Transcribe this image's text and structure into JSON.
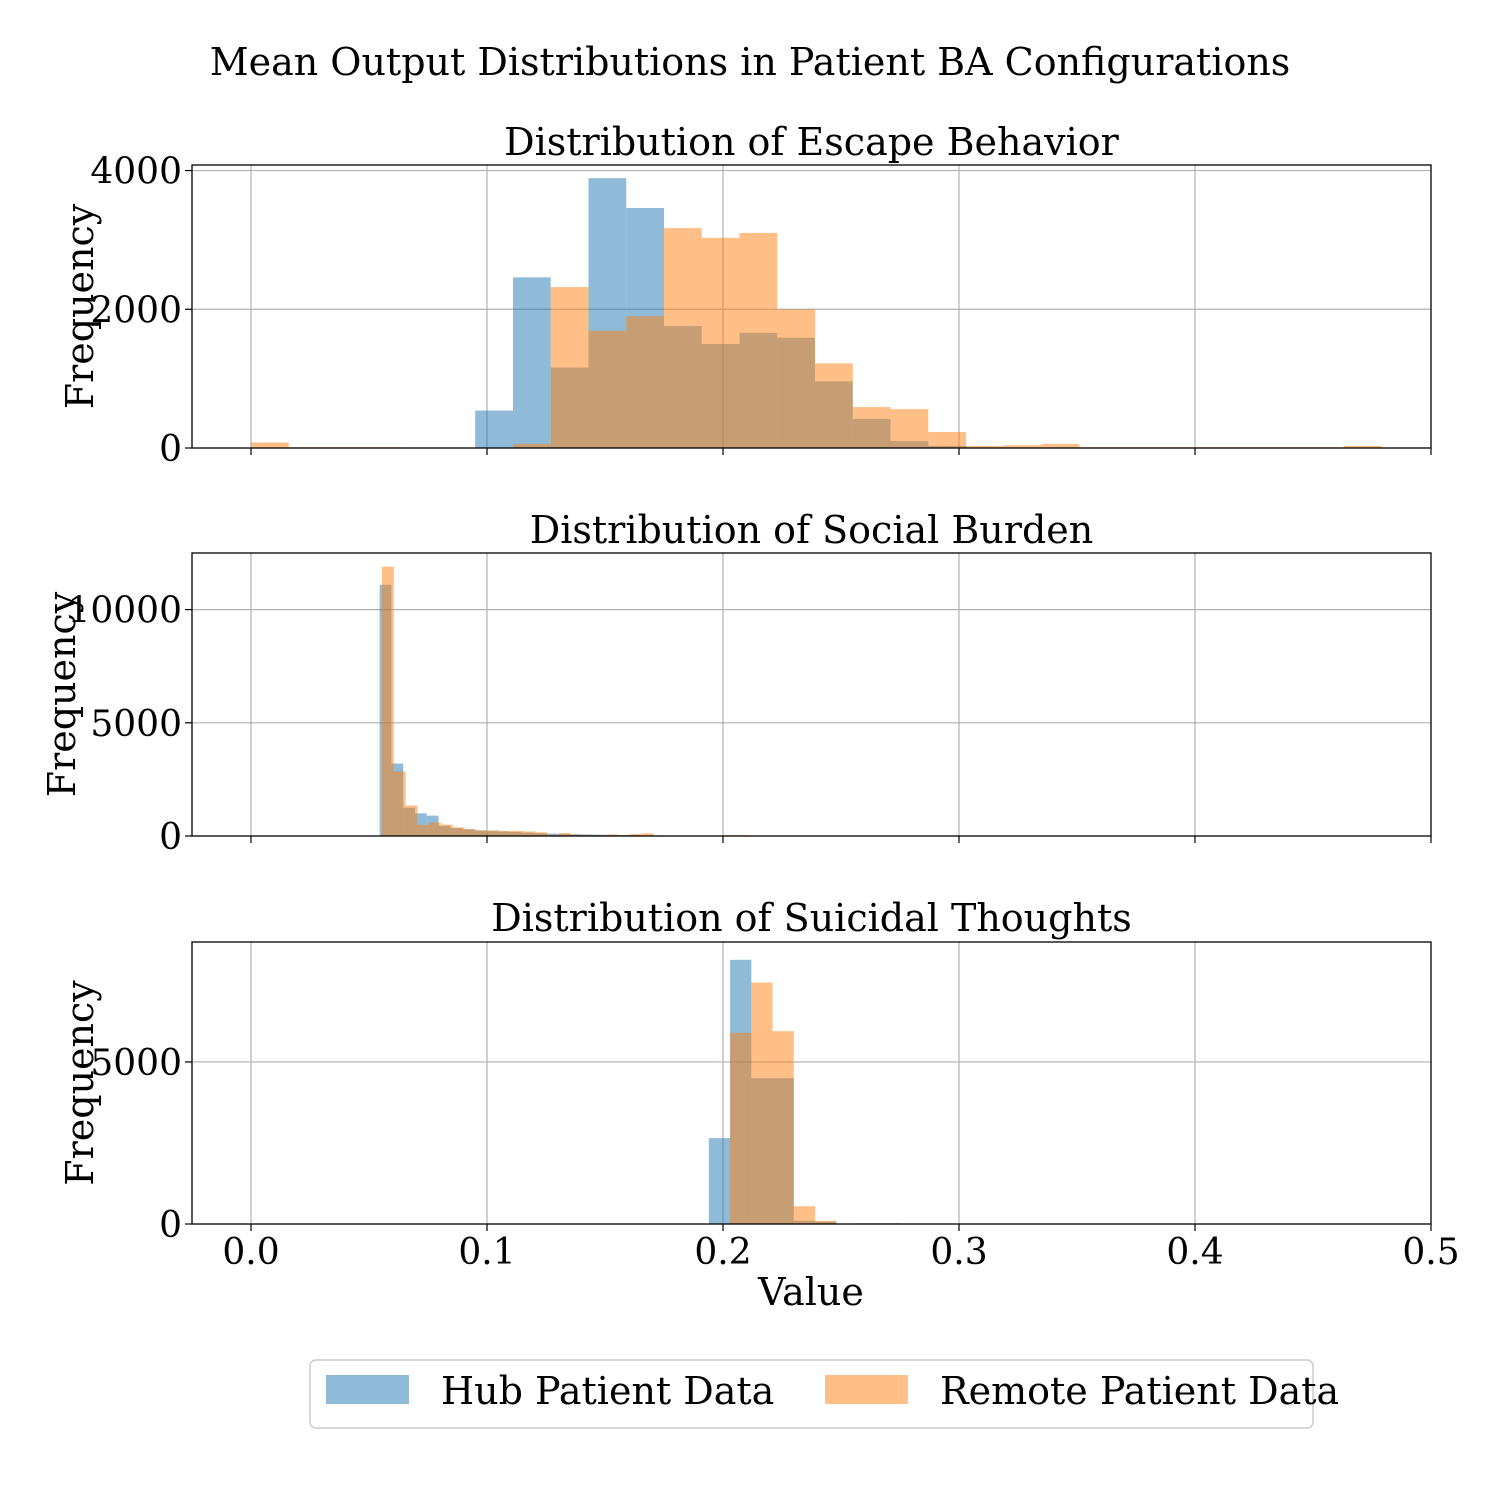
{
  "chart_data": {
    "type": "histogram",
    "title": "Mean Output Distributions in Patient BA Configurations",
    "xlabel": "Value",
    "xlim": [
      -0.025,
      0.5
    ],
    "x_ticks": [
      "0.0",
      "0.1",
      "0.2",
      "0.3",
      "0.4",
      "0.5"
    ],
    "grid": true,
    "legend_position": "bottom-center",
    "series_styles": [
      {
        "name": "Hub Patient Data",
        "color": "#1f77b4",
        "opacity": 0.5
      },
      {
        "name": "Remote Patient Data",
        "color": "#ff7f0e",
        "opacity": 0.5
      }
    ],
    "panels": [
      {
        "title": "Distribution of Escape Behavior",
        "ylabel": "Frequency",
        "ylim": [
          0,
          4080
        ],
        "y_ticks": [
          0,
          2000,
          4000
        ],
        "series": [
          {
            "name": "Hub Patient Data",
            "bins": [
              [
                0.095,
                0.111,
                540
              ],
              [
                0.111,
                0.127,
                2460
              ],
              [
                0.127,
                0.143,
                1160
              ],
              [
                0.143,
                0.159,
                3890
              ],
              [
                0.159,
                0.175,
                3460
              ],
              [
                0.175,
                0.191,
                1760
              ],
              [
                0.191,
                0.207,
                1500
              ],
              [
                0.207,
                0.223,
                1660
              ],
              [
                0.223,
                0.239,
                1590
              ],
              [
                0.239,
                0.255,
                960
              ],
              [
                0.255,
                0.271,
                420
              ],
              [
                0.271,
                0.287,
                100
              ],
              [
                0.287,
                0.303,
                30
              ]
            ]
          },
          {
            "name": "Remote Patient Data",
            "bins": [
              [
                0.0,
                0.016,
                80
              ],
              [
                0.016,
                0.032,
                10
              ],
              [
                0.032,
                0.048,
                10
              ],
              [
                0.048,
                0.064,
                10
              ],
              [
                0.111,
                0.127,
                60
              ],
              [
                0.127,
                0.143,
                2320
              ],
              [
                0.143,
                0.159,
                1690
              ],
              [
                0.159,
                0.175,
                1900
              ],
              [
                0.175,
                0.191,
                3170
              ],
              [
                0.191,
                0.207,
                3030
              ],
              [
                0.207,
                0.223,
                3100
              ],
              [
                0.223,
                0.239,
                2000
              ],
              [
                0.239,
                0.255,
                1220
              ],
              [
                0.255,
                0.271,
                590
              ],
              [
                0.271,
                0.287,
                560
              ],
              [
                0.287,
                0.303,
                230
              ],
              [
                0.303,
                0.319,
                30
              ],
              [
                0.319,
                0.335,
                40
              ],
              [
                0.335,
                0.351,
                60
              ],
              [
                0.351,
                0.367,
                10
              ],
              [
                0.367,
                0.383,
                10
              ],
              [
                0.383,
                0.399,
                10
              ],
              [
                0.399,
                0.415,
                10
              ],
              [
                0.415,
                0.431,
                10
              ],
              [
                0.431,
                0.447,
                10
              ],
              [
                0.447,
                0.463,
                10
              ],
              [
                0.463,
                0.479,
                30
              ]
            ]
          }
        ]
      },
      {
        "title": "Distribution of Social Burden",
        "ylabel": "Frequency",
        "ylim": [
          0,
          12500
        ],
        "y_ticks": [
          0,
          5000,
          10000
        ],
        "series": [
          {
            "name": "Hub Patient Data",
            "bins": [
              [
                0.0545,
                0.0595,
                11100
              ],
              [
                0.0595,
                0.0645,
                3200
              ],
              [
                0.0645,
                0.0695,
                1250
              ],
              [
                0.0695,
                0.0745,
                1000
              ],
              [
                0.0745,
                0.0795,
                900
              ],
              [
                0.0795,
                0.0845,
                450
              ],
              [
                0.0845,
                0.0895,
                350
              ],
              [
                0.0895,
                0.0945,
                300
              ],
              [
                0.0945,
                0.0995,
                250
              ],
              [
                0.0995,
                0.1045,
                220
              ],
              [
                0.1045,
                0.1095,
                200
              ],
              [
                0.1095,
                0.1145,
                180
              ],
              [
                0.1145,
                0.1195,
                150
              ],
              [
                0.1195,
                0.1245,
                130
              ],
              [
                0.1245,
                0.1295,
                110
              ],
              [
                0.1295,
                0.1345,
                90
              ],
              [
                0.1345,
                0.1395,
                80
              ],
              [
                0.1395,
                0.1445,
                70
              ],
              [
                0.1445,
                0.1495,
                60
              ],
              [
                0.1495,
                0.1545,
                50
              ],
              [
                0.1545,
                0.1595,
                40
              ],
              [
                0.1595,
                0.1645,
                40
              ],
              [
                0.1645,
                0.1695,
                30
              ],
              [
                0.1695,
                0.1745,
                30
              ]
            ]
          },
          {
            "name": "Remote Patient Data",
            "bins": [
              [
                0.0555,
                0.0605,
                11900
              ],
              [
                0.0605,
                0.0655,
                2850
              ],
              [
                0.0655,
                0.0705,
                1350
              ],
              [
                0.0705,
                0.0755,
                500
              ],
              [
                0.0755,
                0.0805,
                600
              ],
              [
                0.0805,
                0.0855,
                500
              ],
              [
                0.0855,
                0.0905,
                380
              ],
              [
                0.0905,
                0.0955,
                300
              ],
              [
                0.0955,
                0.1005,
                240
              ],
              [
                0.1005,
                0.1055,
                250
              ],
              [
                0.1055,
                0.1105,
                220
              ],
              [
                0.1105,
                0.1155,
                220
              ],
              [
                0.1155,
                0.1205,
                200
              ],
              [
                0.1205,
                0.1255,
                160
              ],
              [
                0.1255,
                0.1305,
                50
              ],
              [
                0.1305,
                0.1355,
                130
              ],
              [
                0.1355,
                0.1405,
                60
              ],
              [
                0.1405,
                0.1455,
                40
              ],
              [
                0.1455,
                0.1505,
                40
              ],
              [
                0.1505,
                0.1555,
                70
              ],
              [
                0.1555,
                0.1605,
                40
              ],
              [
                0.1605,
                0.1655,
                90
              ],
              [
                0.1655,
                0.1705,
                120
              ],
              [
                0.2005,
                0.2055,
                40
              ],
              [
                0.2055,
                0.2105,
                40
              ]
            ]
          }
        ]
      },
      {
        "title": "Distribution of Suicidal Thoughts",
        "ylabel": "Frequency",
        "ylim": [
          0,
          8700
        ],
        "y_ticks": [
          0,
          5000
        ],
        "series": [
          {
            "name": "Hub Patient Data",
            "bins": [
              [
                0.194,
                0.203,
                2650
              ],
              [
                0.203,
                0.212,
                8150
              ],
              [
                0.212,
                0.221,
                4500
              ],
              [
                0.221,
                0.23,
                4500
              ],
              [
                0.23,
                0.239,
                100
              ],
              [
                0.239,
                0.248,
                70
              ],
              [
                0.257,
                0.266,
                20
              ],
              [
                0.266,
                0.275,
                20
              ]
            ]
          },
          {
            "name": "Remote Patient Data",
            "bins": [
              [
                0.203,
                0.212,
                5900
              ],
              [
                0.212,
                0.221,
                7450
              ],
              [
                0.221,
                0.23,
                5950
              ],
              [
                0.23,
                0.239,
                550
              ],
              [
                0.239,
                0.248,
                100
              ],
              [
                0.257,
                0.266,
                20
              ],
              [
                0.266,
                0.275,
                20
              ]
            ]
          }
        ]
      }
    ]
  }
}
